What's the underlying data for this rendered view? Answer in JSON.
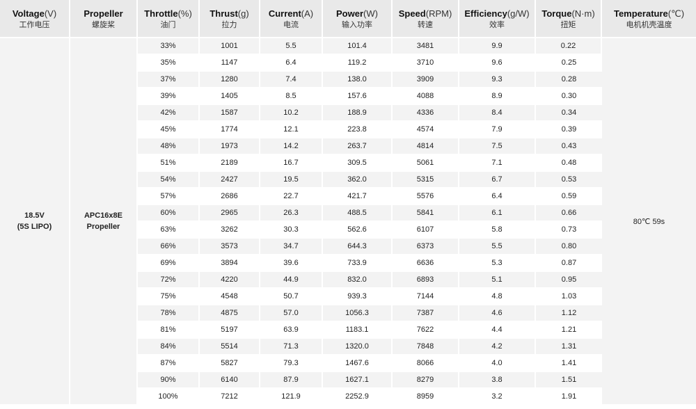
{
  "headers": [
    {
      "en": "Voltage",
      "unit": "(V)",
      "zh": "工作电压"
    },
    {
      "en": "Propeller",
      "unit": "",
      "zh": "螺旋桨"
    },
    {
      "en": "Throttle",
      "unit": "(%)",
      "zh": "油门"
    },
    {
      "en": "Thrust",
      "unit": "(g)",
      "zh": "拉力"
    },
    {
      "en": "Current",
      "unit": "(A)",
      "zh": "电流"
    },
    {
      "en": "Power",
      "unit": "(W)",
      "zh": "输入功率"
    },
    {
      "en": "Speed",
      "unit": "(RPM)",
      "zh": "转速"
    },
    {
      "en": "Efficiency",
      "unit": "(g/W)",
      "zh": "效率"
    },
    {
      "en": "Torque",
      "unit": "(N·m)",
      "zh": "扭矩"
    },
    {
      "en": "Temperature",
      "unit": "(℃)",
      "zh": "电机机壳温度"
    }
  ],
  "voltage": {
    "line1": "18.5V",
    "line2": "(5S LIPO)"
  },
  "propeller": {
    "line1": "APC16x8E",
    "line2": "Propeller"
  },
  "temperature": "80℃  59s",
  "rows": [
    [
      "33%",
      "1001",
      "5.5",
      "101.4",
      "3481",
      "9.9",
      "0.22"
    ],
    [
      "35%",
      "1147",
      "6.4",
      "119.2",
      "3710",
      "9.6",
      "0.25"
    ],
    [
      "37%",
      "1280",
      "7.4",
      "138.0",
      "3909",
      "9.3",
      "0.28"
    ],
    [
      "39%",
      "1405",
      "8.5",
      "157.6",
      "4088",
      "8.9",
      "0.30"
    ],
    [
      "42%",
      "1587",
      "10.2",
      "188.9",
      "4336",
      "8.4",
      "0.34"
    ],
    [
      "45%",
      "1774",
      "12.1",
      "223.8",
      "4574",
      "7.9",
      "0.39"
    ],
    [
      "48%",
      "1973",
      "14.2",
      "263.7",
      "4814",
      "7.5",
      "0.43"
    ],
    [
      "51%",
      "2189",
      "16.7",
      "309.5",
      "5061",
      "7.1",
      "0.48"
    ],
    [
      "54%",
      "2427",
      "19.5",
      "362.0",
      "5315",
      "6.7",
      "0.53"
    ],
    [
      "57%",
      "2686",
      "22.7",
      "421.7",
      "5576",
      "6.4",
      "0.59"
    ],
    [
      "60%",
      "2965",
      "26.3",
      "488.5",
      "5841",
      "6.1",
      "0.66"
    ],
    [
      "63%",
      "3262",
      "30.3",
      "562.6",
      "6107",
      "5.8",
      "0.73"
    ],
    [
      "66%",
      "3573",
      "34.7",
      "644.3",
      "6373",
      "5.5",
      "0.80"
    ],
    [
      "69%",
      "3894",
      "39.6",
      "733.9",
      "6636",
      "5.3",
      "0.87"
    ],
    [
      "72%",
      "4220",
      "44.9",
      "832.0",
      "6893",
      "5.1",
      "0.95"
    ],
    [
      "75%",
      "4548",
      "50.7",
      "939.3",
      "7144",
      "4.8",
      "1.03"
    ],
    [
      "78%",
      "4875",
      "57.0",
      "1056.3",
      "7387",
      "4.6",
      "1.12"
    ],
    [
      "81%",
      "5197",
      "63.9",
      "1183.1",
      "7622",
      "4.4",
      "1.21"
    ],
    [
      "84%",
      "5514",
      "71.3",
      "1320.0",
      "7848",
      "4.2",
      "1.31"
    ],
    [
      "87%",
      "5827",
      "79.3",
      "1467.6",
      "8066",
      "4.0",
      "1.41"
    ],
    [
      "90%",
      "6140",
      "87.9",
      "1627.1",
      "8279",
      "3.8",
      "1.51"
    ],
    [
      "100%",
      "7212",
      "121.9",
      "2252.9",
      "8959",
      "3.2",
      "1.91"
    ]
  ]
}
